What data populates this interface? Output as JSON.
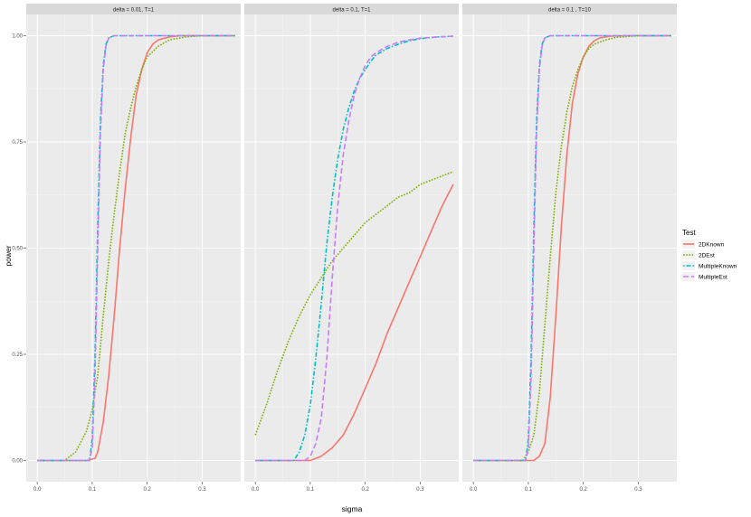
{
  "chart_data": {
    "type": "line",
    "xlabel": "sigma",
    "ylabel": "power",
    "xlim": [
      -0.02,
      0.37
    ],
    "ylim": [
      -0.05,
      1.05
    ],
    "x_ticks": [
      0.0,
      0.1,
      0.2,
      0.3
    ],
    "x_tick_labels": [
      "0.0",
      "0.1",
      "0.2",
      "0.3"
    ],
    "y_ticks": [
      0.0,
      0.25,
      0.5,
      0.75,
      1.0
    ],
    "y_tick_labels": [
      "0.00",
      "0.25",
      "0.50",
      "0.75",
      "1.00"
    ],
    "grid": true,
    "legend": {
      "title": "Test",
      "position": "right",
      "entries": [
        {
          "name": "2DKnown",
          "color": "#F8766D",
          "dash": "solid"
        },
        {
          "name": "2DEst",
          "color": "#7CAE00",
          "dash": "dotted"
        },
        {
          "name": "MultipleKnown",
          "color": "#00BFC4",
          "dash": "dotdash"
        },
        {
          "name": "MultipleEst",
          "color": "#C77CFF",
          "dash": "longdash"
        }
      ]
    },
    "panels": [
      {
        "strip": "delta = 0.01, T=1",
        "series": [
          {
            "name": "2DKnown",
            "x": [
              0.0,
              0.09,
              0.105,
              0.11,
              0.12,
              0.13,
              0.14,
              0.15,
              0.16,
              0.17,
              0.18,
              0.19,
              0.2,
              0.21,
              0.22,
              0.24,
              0.26,
              0.36
            ],
            "y": [
              0.0,
              0.0,
              0.005,
              0.02,
              0.09,
              0.2,
              0.34,
              0.5,
              0.64,
              0.76,
              0.86,
              0.92,
              0.96,
              0.98,
              0.99,
              0.997,
              1.0,
              1.0
            ]
          },
          {
            "name": "2DEst",
            "x": [
              0.0,
              0.05,
              0.07,
              0.09,
              0.1,
              0.11,
              0.12,
              0.13,
              0.14,
              0.15,
              0.16,
              0.17,
              0.18,
              0.19,
              0.2,
              0.22,
              0.24,
              0.27,
              0.3,
              0.36
            ],
            "y": [
              0.0,
              0.0,
              0.02,
              0.07,
              0.12,
              0.2,
              0.34,
              0.47,
              0.58,
              0.68,
              0.77,
              0.83,
              0.88,
              0.92,
              0.95,
              0.975,
              0.99,
              0.997,
              1.0,
              1.0
            ]
          },
          {
            "name": "MultipleKnown",
            "x": [
              0.0,
              0.095,
              0.1,
              0.105,
              0.11,
              0.115,
              0.12,
              0.125,
              0.13,
              0.14,
              0.15,
              0.36
            ],
            "y": [
              0.0,
              0.0,
              0.05,
              0.25,
              0.55,
              0.8,
              0.93,
              0.98,
              0.995,
              1.0,
              1.0,
              1.0
            ]
          },
          {
            "name": "MultipleEst",
            "x": [
              0.0,
              0.095,
              0.1,
              0.105,
              0.11,
              0.115,
              0.12,
              0.125,
              0.13,
              0.14,
              0.15,
              0.36
            ],
            "y": [
              0.0,
              0.0,
              0.03,
              0.2,
              0.5,
              0.77,
              0.92,
              0.975,
              0.995,
              1.0,
              1.0,
              1.0
            ]
          }
        ]
      },
      {
        "strip": "delta = 0.1, T=1",
        "series": [
          {
            "name": "2DKnown",
            "x": [
              0.0,
              0.1,
              0.12,
              0.14,
              0.16,
              0.18,
              0.2,
              0.22,
              0.24,
              0.26,
              0.28,
              0.3,
              0.32,
              0.34,
              0.36
            ],
            "y": [
              0.0,
              0.0,
              0.01,
              0.03,
              0.06,
              0.11,
              0.17,
              0.23,
              0.3,
              0.36,
              0.42,
              0.48,
              0.54,
              0.6,
              0.65
            ]
          },
          {
            "name": "2DEst",
            "x": [
              0.0,
              0.02,
              0.04,
              0.06,
              0.08,
              0.1,
              0.12,
              0.14,
              0.16,
              0.18,
              0.2,
              0.22,
              0.24,
              0.26,
              0.28,
              0.3,
              0.32,
              0.34,
              0.36
            ],
            "y": [
              0.06,
              0.13,
              0.21,
              0.28,
              0.34,
              0.39,
              0.43,
              0.47,
              0.5,
              0.53,
              0.56,
              0.58,
              0.6,
              0.62,
              0.63,
              0.65,
              0.66,
              0.67,
              0.68
            ]
          },
          {
            "name": "MultipleKnown",
            "x": [
              0.0,
              0.07,
              0.08,
              0.09,
              0.1,
              0.11,
              0.12,
              0.13,
              0.14,
              0.15,
              0.16,
              0.17,
              0.18,
              0.19,
              0.2,
              0.21,
              0.22,
              0.24,
              0.26,
              0.28,
              0.3,
              0.33,
              0.36
            ],
            "y": [
              0.0,
              0.0,
              0.02,
              0.06,
              0.13,
              0.24,
              0.37,
              0.51,
              0.62,
              0.71,
              0.78,
              0.83,
              0.87,
              0.9,
              0.92,
              0.94,
              0.955,
              0.97,
              0.98,
              0.988,
              0.993,
              0.997,
              0.999
            ]
          },
          {
            "name": "MultipleEst",
            "x": [
              0.0,
              0.09,
              0.1,
              0.11,
              0.12,
              0.13,
              0.14,
              0.15,
              0.16,
              0.17,
              0.18,
              0.19,
              0.2,
              0.21,
              0.22,
              0.24,
              0.26,
              0.28,
              0.3,
              0.33,
              0.36
            ],
            "y": [
              0.0,
              0.0,
              0.01,
              0.04,
              0.1,
              0.24,
              0.43,
              0.6,
              0.72,
              0.8,
              0.86,
              0.9,
              0.93,
              0.95,
              0.96,
              0.975,
              0.985,
              0.99,
              0.994,
              0.997,
              0.999
            ]
          }
        ]
      },
      {
        "strip": "delta = 0.1 , T=10",
        "series": [
          {
            "name": "2DKnown",
            "x": [
              0.0,
              0.11,
              0.12,
              0.13,
              0.14,
              0.15,
              0.16,
              0.17,
              0.18,
              0.19,
              0.2,
              0.21,
              0.22,
              0.23,
              0.25,
              0.28,
              0.36
            ],
            "y": [
              0.0,
              0.0,
              0.01,
              0.04,
              0.15,
              0.34,
              0.55,
              0.72,
              0.84,
              0.91,
              0.95,
              0.975,
              0.988,
              0.995,
              0.999,
              1.0,
              1.0
            ]
          },
          {
            "name": "2DEst",
            "x": [
              0.0,
              0.09,
              0.1,
              0.11,
              0.12,
              0.13,
              0.14,
              0.15,
              0.16,
              0.17,
              0.18,
              0.19,
              0.2,
              0.21,
              0.22,
              0.24,
              0.26,
              0.3,
              0.36
            ],
            "y": [
              0.0,
              0.0,
              0.02,
              0.06,
              0.16,
              0.32,
              0.48,
              0.63,
              0.74,
              0.82,
              0.88,
              0.92,
              0.95,
              0.97,
              0.98,
              0.99,
              0.996,
              1.0,
              1.0
            ]
          },
          {
            "name": "MultipleKnown",
            "x": [
              0.0,
              0.095,
              0.1,
              0.105,
              0.11,
              0.115,
              0.12,
              0.125,
              0.13,
              0.14,
              0.15,
              0.36
            ],
            "y": [
              0.0,
              0.0,
              0.05,
              0.25,
              0.55,
              0.8,
              0.93,
              0.98,
              0.995,
              1.0,
              1.0,
              1.0
            ]
          },
          {
            "name": "MultipleEst",
            "x": [
              0.0,
              0.095,
              0.1,
              0.105,
              0.11,
              0.115,
              0.12,
              0.125,
              0.13,
              0.14,
              0.15,
              0.36
            ],
            "y": [
              0.0,
              0.0,
              0.03,
              0.2,
              0.5,
              0.77,
              0.92,
              0.975,
              0.995,
              1.0,
              1.0,
              1.0
            ]
          }
        ]
      }
    ]
  }
}
